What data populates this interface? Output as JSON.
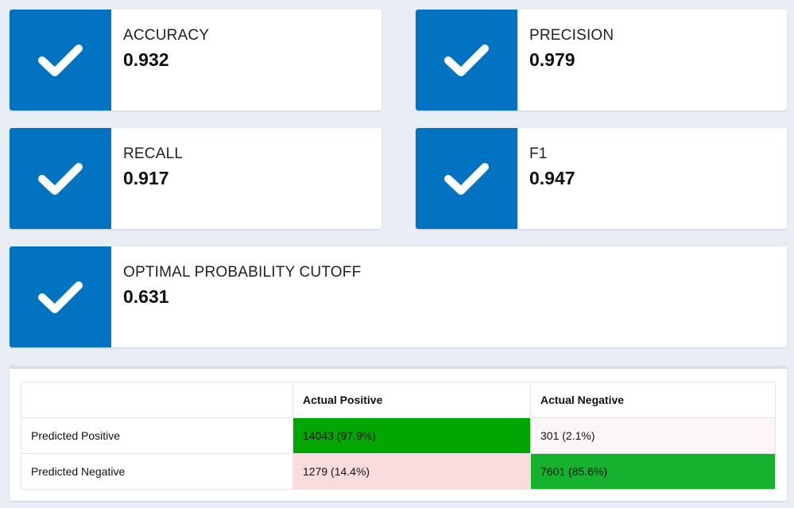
{
  "metrics": {
    "accuracy": {
      "label": "ACCURACY",
      "value": "0.932"
    },
    "precision": {
      "label": "PRECISION",
      "value": "0.979"
    },
    "recall": {
      "label": "RECALL",
      "value": "0.917"
    },
    "f1": {
      "label": "F1",
      "value": "0.947"
    },
    "cutoff": {
      "label": "OPTIMAL PROBABILITY CUTOFF",
      "value": "0.631"
    }
  },
  "icon": "checkmark-icon",
  "colors": {
    "accent": "#0273c0",
    "strong_green": "#02a602",
    "medium_green": "#16b22f",
    "light_red": "#fbdcdc",
    "very_light_red": "#fcf6f6"
  },
  "confusion_matrix": {
    "headers": [
      "",
      "Actual Positive",
      "Actual Negative"
    ],
    "rows": [
      {
        "label": "Predicted Positive",
        "cells": [
          "14043 (97.9%)",
          "301 (2.1%)"
        ]
      },
      {
        "label": "Predicted Negative",
        "cells": [
          "1279 (14.4%)",
          "7601 (85.6%)"
        ]
      }
    ]
  }
}
